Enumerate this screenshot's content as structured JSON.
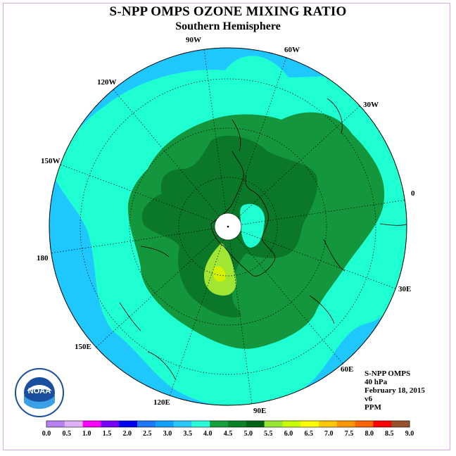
{
  "title": "S-NPP OMPS OZONE MIXING RATIO",
  "subtitle": "Southern Hemisphere",
  "longitude_labels": [
    "90W",
    "60W",
    "30W",
    "0",
    "30E",
    "60E",
    "90E",
    "120E",
    "150E",
    "180",
    "150W",
    "120W"
  ],
  "info": {
    "instrument": "S-NPP OMPS",
    "level": "40 hPa",
    "date": "February 18, 2015",
    "version": "v6",
    "units": "PPM"
  },
  "logo_text": "NOAA",
  "colorbar": {
    "ticks": [
      "0.0",
      "0.5",
      "1.0",
      "1.5",
      "2.0",
      "2.5",
      "3.0",
      "3.5",
      "4.0",
      "4.5",
      "5.0",
      "5.5",
      "6.0",
      "6.5",
      "7.0",
      "7.5",
      "8.0",
      "8.5",
      "9.0"
    ],
    "colors": [
      "#b880f0",
      "#e0b0f8",
      "#ff00ff",
      "#7800ff",
      "#0000f0",
      "#1e78ff",
      "#14a0ff",
      "#28c8ff",
      "#28ffd8",
      "#14a03c",
      "#0a8228",
      "#006414",
      "#96e632",
      "#c8ff00",
      "#ffff00",
      "#ffc800",
      "#ff9600",
      "#ff6400",
      "#ff0000",
      "#96502a"
    ]
  },
  "map_colors": {
    "band_3_0_3_5": "#1ec8ff",
    "band_3_5_4_0": "#1effd2",
    "band_4_0_4_5": "#14963c",
    "band_4_5_5_0": "#0a7828",
    "band_5_0_5_5": "#a0e632",
    "band_5_5_6_0": "#d2f000",
    "pole_mask": "#ffffff"
  }
}
